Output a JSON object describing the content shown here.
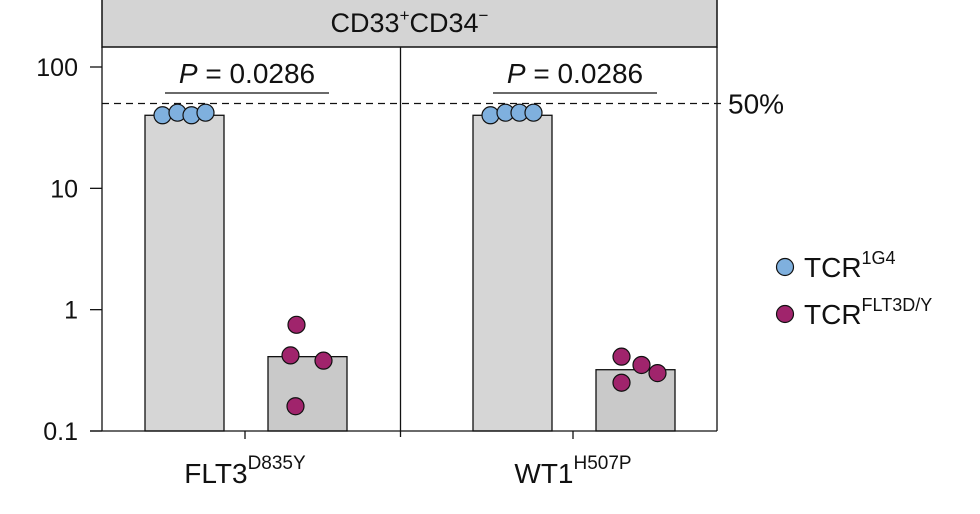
{
  "header": {
    "main": "CD33",
    "sup1": "+",
    "mid": "CD34",
    "sup2": "−"
  },
  "threshold_label": "50%",
  "legend": [
    {
      "main": "TCR",
      "sup": "1G4",
      "color": "#7fb0de"
    },
    {
      "main": "TCR",
      "sup": "FLT3D/Y",
      "color": "#a0246c"
    }
  ],
  "chart_data": {
    "type": "bar",
    "yscale": "log",
    "ylim": [
      0.1,
      100
    ],
    "yticks": [
      {
        "value": 100,
        "label": "100"
      },
      {
        "value": 10,
        "label": "10"
      },
      {
        "value": 1,
        "label": "1"
      },
      {
        "value": 0.1,
        "label": "0.1"
      }
    ],
    "threshold": 50,
    "grid": false,
    "legend_position": "right",
    "groups": [
      {
        "name": "FLT3",
        "name_sup": "D835Y",
        "p_label_italic": "P",
        "p_label_rest": " = 0.0286",
        "bars": [
          {
            "series": "TCR1G4",
            "value": 40,
            "points": [
              40,
              42,
              40,
              42
            ]
          },
          {
            "series": "TCRFLT3D/Y",
            "value": 0.41,
            "points": [
              0.42,
              0.75,
              0.38,
              0.16
            ]
          }
        ]
      },
      {
        "name": "WT1",
        "name_sup": "H507P",
        "p_label_italic": "P",
        "p_label_rest": " = 0.0286",
        "bars": [
          {
            "series": "TCR1G4",
            "value": 40,
            "points": [
              40,
              42,
              42,
              42
            ]
          },
          {
            "series": "TCRFLT3D/Y",
            "value": 0.32,
            "points": [
              0.41,
              0.25,
              0.35,
              0.3
            ]
          }
        ]
      }
    ]
  }
}
